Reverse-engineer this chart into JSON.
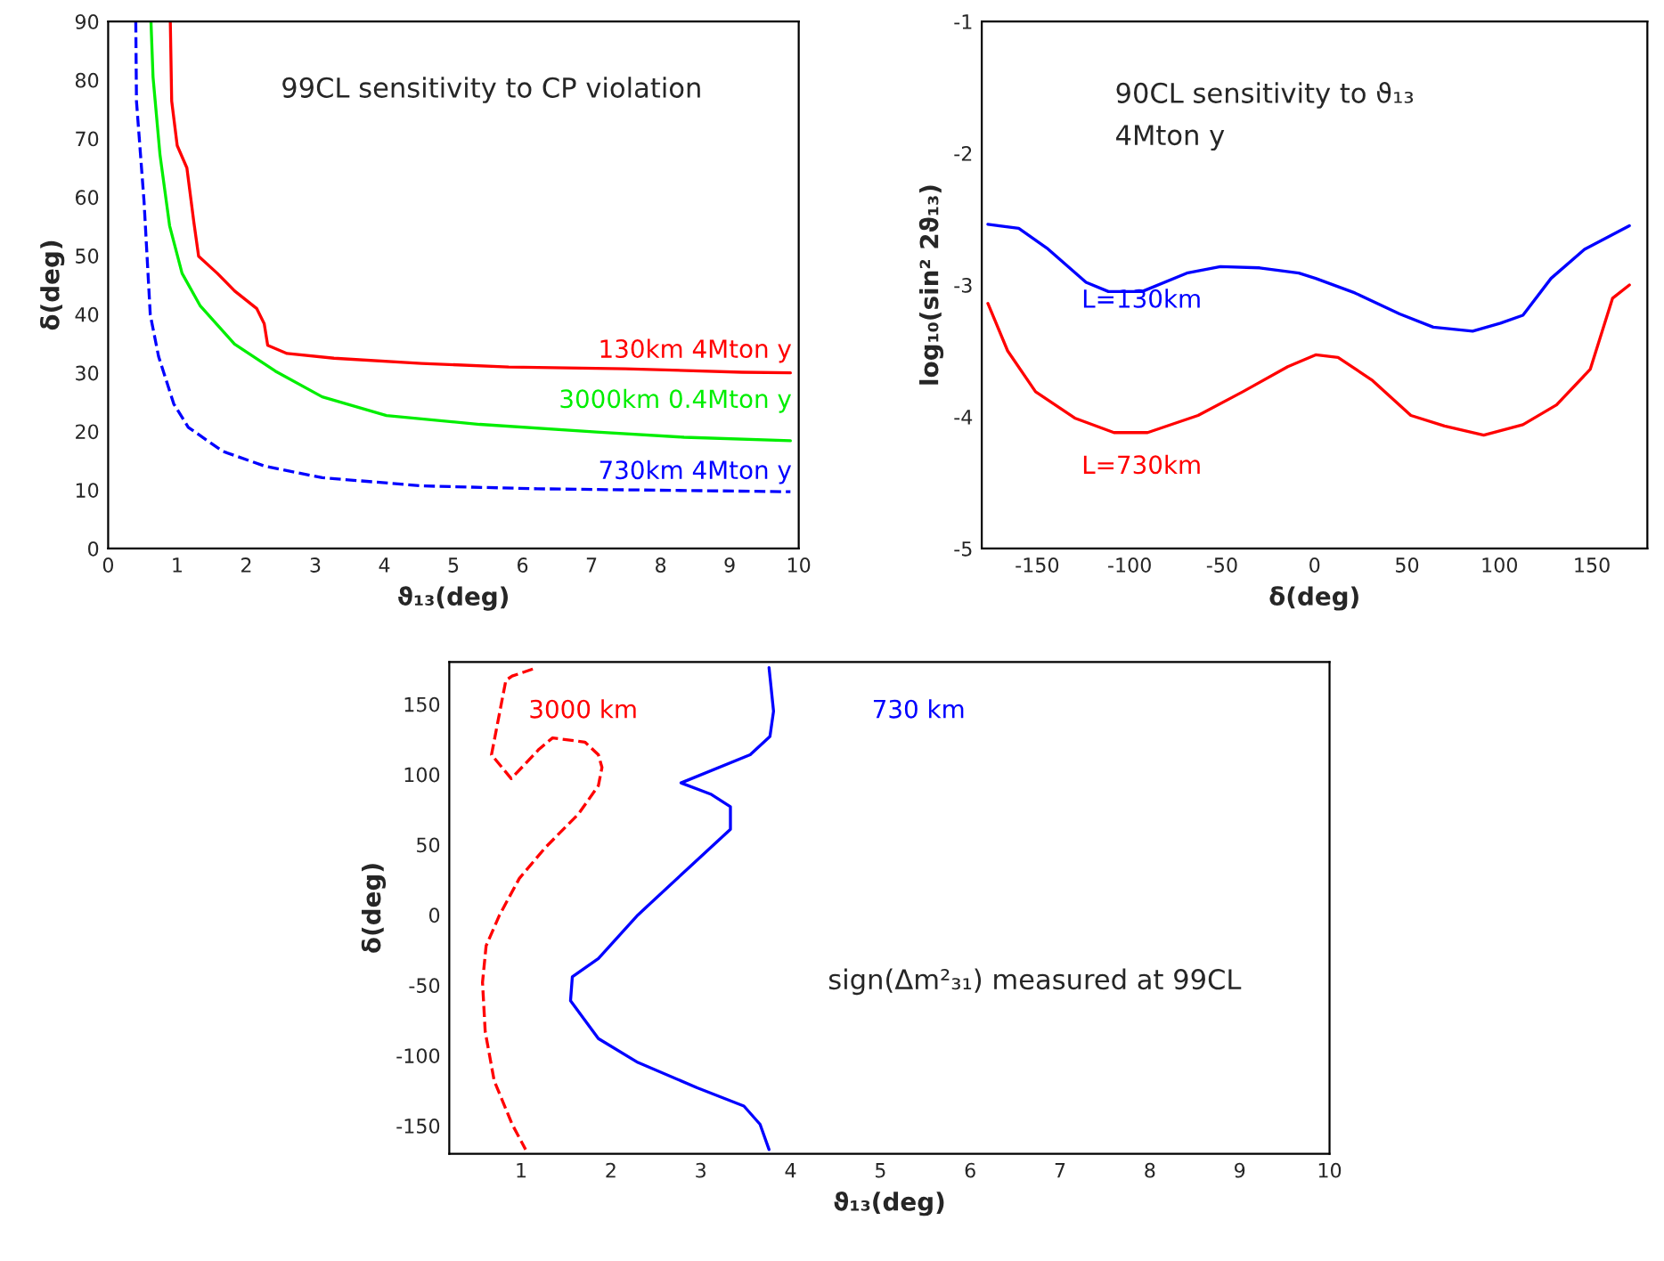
{
  "chart_data": [
    {
      "type": "line",
      "xlabel": "ϑ₁₃(deg)",
      "ylabel": "δ(deg)",
      "xlim": [
        0,
        10
      ],
      "ylim": [
        0,
        90
      ],
      "xticks": [
        0,
        1,
        2,
        3,
        4,
        5,
        6,
        7,
        8,
        9,
        10
      ],
      "yticks": [
        0,
        10,
        20,
        30,
        40,
        50,
        60,
        70,
        80,
        90
      ],
      "grid": false,
      "annotations": [
        "99CL sensitivity to CP violation"
      ],
      "series": [
        {
          "name": "130km 4Mton y",
          "color": "#ff0000",
          "line_style": "solid",
          "x": [
            0.9,
            0.92,
            1.0,
            1.14,
            1.24,
            1.31,
            1.58,
            1.83,
            2.15,
            2.26,
            2.31,
            2.59,
            3.27,
            4.54,
            5.8,
            7.49,
            9.18,
            9.88
          ],
          "values": [
            90,
            76.4,
            68.8,
            65,
            55.8,
            49.9,
            47,
            44,
            41,
            38.4,
            34.7,
            33.3,
            32.5,
            31.6,
            31.0,
            30.7,
            30.1,
            30.0
          ]
        },
        {
          "name": "3000km 0.4Mton y",
          "color": "#00ee00",
          "line_style": "solid",
          "x": [
            0.62,
            0.65,
            0.75,
            0.89,
            1.07,
            1.33,
            1.83,
            2.42,
            3.1,
            4.03,
            5.38,
            7.07,
            8.34,
            9.88
          ],
          "values": [
            90,
            80.5,
            67.3,
            55.1,
            47,
            41.5,
            34.9,
            30.3,
            25.9,
            22.7,
            21.2,
            19.9,
            19.0,
            18.4
          ]
        },
        {
          "name": "730km 4Mton y",
          "color": "#0000ff",
          "line_style": "dashed",
          "x": [
            0.4,
            0.41,
            0.52,
            0.61,
            0.73,
            0.95,
            1.16,
            1.66,
            2.26,
            3.1,
            4.54,
            6.22,
            9.88
          ],
          "values": [
            90,
            76.4,
            59.2,
            39.9,
            32.8,
            24.7,
            20.7,
            16.6,
            14.1,
            12.1,
            10.7,
            10.2,
            9.7
          ]
        }
      ]
    },
    {
      "type": "line",
      "xlabel": "δ(deg)",
      "ylabel": "log₁₀(sin² 2ϑ₁₃)",
      "xlim": [
        -180,
        180
      ],
      "ylim": [
        -5,
        -1
      ],
      "xticks": [
        -150,
        -100,
        -50,
        0,
        50,
        100,
        150
      ],
      "yticks": [
        -5,
        -4,
        -3,
        -2,
        -1
      ],
      "grid": false,
      "annotations": [
        "90CL sensitivity to ϑ₁₃",
        "4Mton y"
      ],
      "series": [
        {
          "name": "L=130km",
          "color": "#0000ff",
          "line_style": "solid",
          "x": [
            -176.7,
            -160,
            -144.8,
            -123.6,
            -111.5,
            -93.3,
            -69.1,
            -50.9,
            -29.7,
            -8.5,
            0.6,
            21.8,
            46,
            64.2,
            85.5,
            100.6,
            112.7,
            127.9,
            146,
            170.3
          ],
          "values": [
            -2.54,
            -2.57,
            -2.72,
            -2.98,
            -3.05,
            -3.05,
            -2.91,
            -2.86,
            -2.87,
            -2.91,
            -2.95,
            -3.06,
            -3.22,
            -3.32,
            -3.35,
            -3.29,
            -3.23,
            -2.95,
            -2.73,
            -2.55
          ]
        },
        {
          "name": "L=730km",
          "color": "#ff0000",
          "line_style": "solid",
          "x": [
            -176.7,
            -166,
            -150.9,
            -129.7,
            -108.5,
            -90.3,
            -63,
            -38.8,
            -14.5,
            0.6,
            12.7,
            30.9,
            52.1,
            70.3,
            91.5,
            112.7,
            130.9,
            149.1,
            161.2,
            170.3
          ],
          "values": [
            -3.14,
            -3.5,
            -3.81,
            -4.01,
            -4.12,
            -4.12,
            -3.99,
            -3.81,
            -3.62,
            -3.53,
            -3.55,
            -3.72,
            -3.99,
            -4.07,
            -4.14,
            -4.06,
            -3.91,
            -3.64,
            -3.1,
            -3.0
          ]
        }
      ]
    },
    {
      "type": "line",
      "xlabel": "ϑ₁₃(deg)",
      "ylabel": "δ(deg)",
      "xlim": [
        0.2,
        10
      ],
      "ylim": [
        -170,
        180
      ],
      "xticks": [
        1,
        2,
        3,
        4,
        5,
        6,
        7,
        8,
        9,
        10
      ],
      "yticks": [
        -150,
        -100,
        -50,
        0,
        50,
        100,
        150
      ],
      "grid": false,
      "annotations": [
        "sign(Δm²₃₁) measured at 99CL"
      ],
      "series": [
        {
          "name": "3000 km",
          "color": "#ff0000",
          "line_style": "dashed",
          "x": [
            1.13,
            0.9,
            0.83,
            0.67,
            0.89,
            1.2,
            1.35,
            1.71,
            1.86,
            1.9,
            1.86,
            1.64,
            1.27,
            0.98,
            0.76,
            0.61,
            0.57,
            0.6,
            0.7,
            0.9,
            1.05
          ],
          "values": [
            175,
            170,
            167,
            114,
            97,
            118,
            126,
            123,
            114,
            105,
            92,
            72,
            48,
            26,
            0,
            -22,
            -48,
            -83,
            -118,
            -149,
            -167
          ]
        },
        {
          "name": "730 km",
          "color": "#0000ff",
          "line_style": "solid",
          "x": [
            3.76,
            3.81,
            3.77,
            3.55,
            2.78,
            3.11,
            3.33,
            3.33,
            2.89,
            2.3,
            1.86,
            1.57,
            1.55,
            1.86,
            2.3,
            2.96,
            3.48,
            3.66,
            3.76
          ],
          "values": [
            176,
            145,
            127,
            114,
            94,
            86,
            77,
            61,
            35,
            0,
            -31,
            -44,
            -61,
            -88,
            -105,
            -123,
            -136,
            -149,
            -167
          ]
        }
      ]
    }
  ]
}
